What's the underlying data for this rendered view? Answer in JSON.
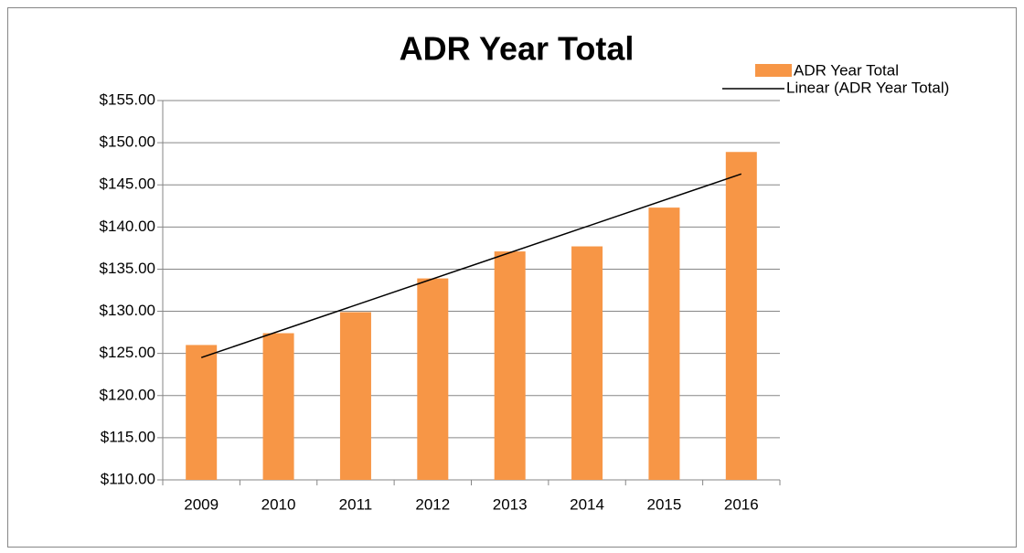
{
  "chart_data": {
    "type": "bar",
    "title": "ADR Year Total",
    "categories": [
      "2009",
      "2010",
      "2011",
      "2012",
      "2013",
      "2014",
      "2015",
      "2016"
    ],
    "series": [
      {
        "name": "ADR Year Total",
        "color": "#f79646",
        "values": [
          126.0,
          127.4,
          129.9,
          133.9,
          137.1,
          137.7,
          142.3,
          148.9
        ]
      }
    ],
    "trendline": {
      "name": "Linear (ADR Year Total)",
      "color": "#000000"
    },
    "ylim": [
      110,
      155
    ],
    "yticks": [
      {
        "value": 110,
        "label": "$110.00"
      },
      {
        "value": 115,
        "label": "$115.00"
      },
      {
        "value": 120,
        "label": "$120.00"
      },
      {
        "value": 125,
        "label": "$125.00"
      },
      {
        "value": 130,
        "label": "$130.00"
      },
      {
        "value": 135,
        "label": "$135.00"
      },
      {
        "value": 140,
        "label": "$140.00"
      },
      {
        "value": 145,
        "label": "$145.00"
      },
      {
        "value": 150,
        "label": "$150.00"
      },
      {
        "value": 155,
        "label": "$155.00"
      }
    ],
    "grid": true
  }
}
